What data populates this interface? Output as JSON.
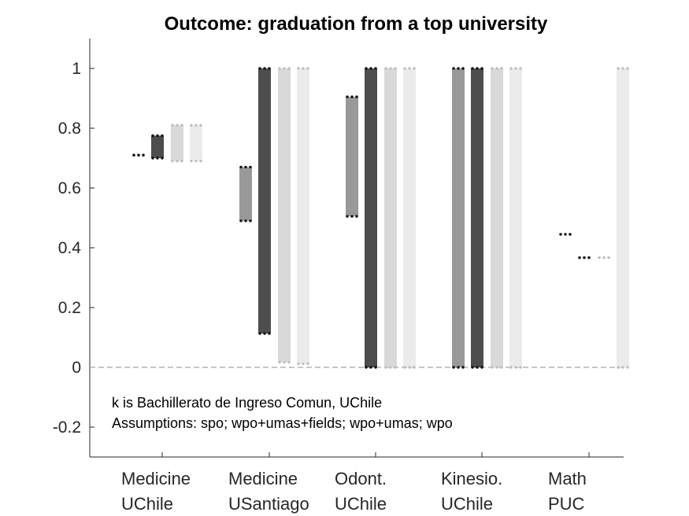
{
  "chart_data": {
    "type": "bar",
    "title": "Outcome: graduation from a top university",
    "xlabel": "",
    "ylabel": "",
    "ylim": [
      -0.3,
      1.1
    ],
    "yticks": [
      -0.2,
      0,
      0.2,
      0.4,
      0.6,
      0.8,
      1
    ],
    "ytick_labels": [
      "-0.2",
      "0",
      "0.2",
      "0.4",
      "0.6",
      "0.8",
      "1"
    ],
    "categories": [
      {
        "line1": "Medicine",
        "line2": "UChile"
      },
      {
        "line1": "Medicine",
        "line2": "USantiago"
      },
      {
        "line1": "Odont.",
        "line2": "UChile"
      },
      {
        "line1": "Kinesio.",
        "line2": "UChile"
      },
      {
        "line1": "Math",
        "line2": "PUC"
      }
    ],
    "annotations": [
      "k is Bachillerato de Ingreso Comun, UChile",
      "Assumptions: spo; wpo+umas+fields; wpo+umas; wpo"
    ],
    "reference_line": 0,
    "series": [
      {
        "color": "#999999",
        "bounds": [
          [
            0.71,
            0.71
          ],
          [
            0.49,
            0.67
          ],
          [
            0.505,
            0.905
          ],
          [
            0.0,
            1.0
          ],
          [
            0.445,
            0.445
          ]
        ]
      },
      {
        "color": "#4d4d4d",
        "bounds": [
          [
            0.7,
            0.775
          ],
          [
            0.113,
            1.0
          ],
          [
            0.0,
            1.0
          ],
          [
            0.0,
            1.0
          ],
          [
            0.367,
            0.367
          ]
        ]
      },
      {
        "color": "#d9d9d9",
        "bounds": [
          [
            0.69,
            0.81
          ],
          [
            0.017,
            1.0
          ],
          [
            0.0,
            1.0
          ],
          [
            0.0,
            1.0
          ],
          [
            0.367,
            0.367
          ]
        ]
      },
      {
        "color": "#ebebeb",
        "bounds": [
          [
            0.69,
            0.81
          ],
          [
            0.012,
            1.0
          ],
          [
            0.0,
            1.0
          ],
          [
            0.0,
            1.0
          ],
          [
            0.0,
            1.0
          ]
        ]
      }
    ]
  }
}
